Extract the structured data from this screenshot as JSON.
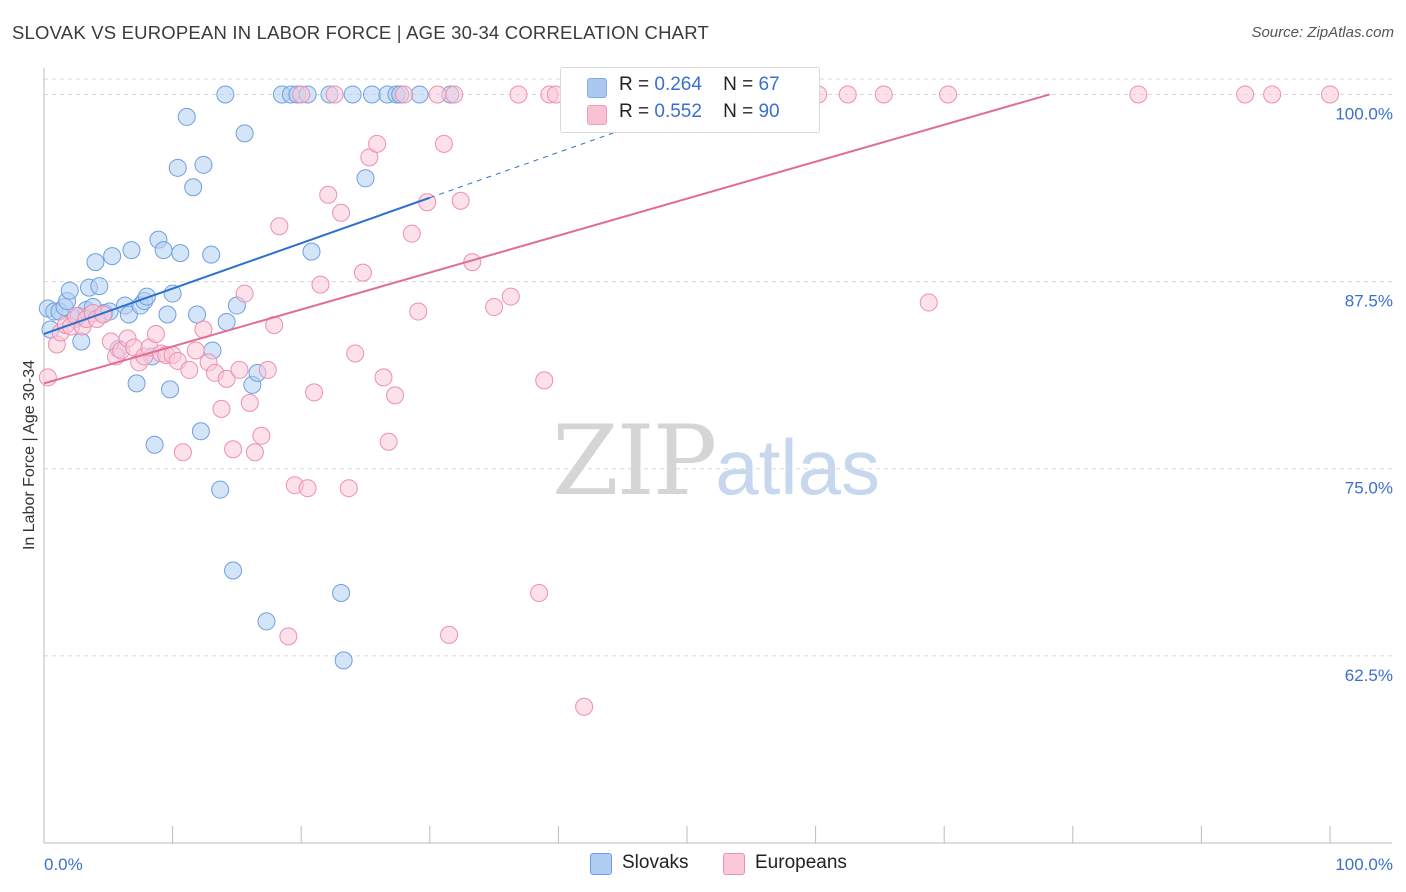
{
  "title": "SLOVAK VS EUROPEAN IN LABOR FORCE | AGE 30-34 CORRELATION CHART",
  "source": "Source: ZipAtlas.com",
  "watermark": {
    "zip": "ZIP",
    "atlas": "atlas"
  },
  "legend": {
    "rows": [
      {
        "r_label": "R =",
        "r_value": "0.264",
        "n_label": "N =",
        "n_value": "67",
        "color": "#9dbfee",
        "border": "#6f9fe0"
      },
      {
        "r_label": "R =",
        "r_value": "0.552",
        "n_label": "N =",
        "n_value": "90",
        "color": "#f7b8cb",
        "border": "#ee8fae"
      }
    ]
  },
  "bottom_legend": [
    {
      "label": "Slovaks",
      "color": "#aecdf3",
      "border": "#6f9fe0"
    },
    {
      "label": "Europeans",
      "color": "#f9c9d8",
      "border": "#ee8fae"
    }
  ],
  "chart_data": {
    "type": "scatter",
    "title": "SLOVAK VS EUROPEAN IN LABOR FORCE | AGE 30-34 CORRELATION CHART",
    "xlabel": "",
    "ylabel": "In Labor Force | Age 30-34",
    "xlim": [
      0,
      100
    ],
    "ylim": [
      50,
      101.5
    ],
    "x_tick_labels": [
      "0.0%",
      "100.0%"
    ],
    "y_ticks": [
      62.5,
      75.0,
      87.5,
      100.0
    ],
    "y_tick_labels": [
      "62.5%",
      "75.0%",
      "87.5%",
      "100.0%"
    ],
    "series": [
      {
        "name": "Slovaks",
        "color": "#6f9fe0",
        "fill": "#b3cff3",
        "points": [
          [
            0.3,
            85.7
          ],
          [
            0.5,
            84.3
          ],
          [
            0.8,
            85.5
          ],
          [
            1.2,
            85.5
          ],
          [
            1.6,
            85.8
          ],
          [
            1.8,
            86.2
          ],
          [
            2.0,
            86.9
          ],
          [
            2.4,
            85.0
          ],
          [
            2.7,
            85.2
          ],
          [
            2.9,
            83.5
          ],
          [
            3.3,
            85.6
          ],
          [
            3.5,
            87.1
          ],
          [
            3.8,
            85.8
          ],
          [
            4.0,
            88.8
          ],
          [
            4.3,
            87.2
          ],
          [
            4.7,
            85.4
          ],
          [
            5.1,
            85.5
          ],
          [
            5.3,
            89.2
          ],
          [
            5.8,
            83.0
          ],
          [
            6.3,
            85.9
          ],
          [
            6.6,
            85.3
          ],
          [
            6.8,
            89.6
          ],
          [
            7.2,
            80.7
          ],
          [
            7.5,
            85.9
          ],
          [
            7.8,
            86.2
          ],
          [
            8.0,
            86.5
          ],
          [
            8.4,
            82.5
          ],
          [
            8.6,
            76.6
          ],
          [
            8.9,
            90.3
          ],
          [
            9.3,
            89.6
          ],
          [
            9.6,
            85.3
          ],
          [
            9.8,
            80.3
          ],
          [
            10.0,
            86.7
          ],
          [
            10.4,
            95.1
          ],
          [
            10.6,
            89.4
          ],
          [
            11.1,
            98.5
          ],
          [
            11.6,
            93.8
          ],
          [
            11.9,
            85.3
          ],
          [
            12.2,
            77.5
          ],
          [
            12.4,
            95.3
          ],
          [
            13.0,
            89.3
          ],
          [
            13.1,
            82.9
          ],
          [
            13.7,
            73.6
          ],
          [
            14.1,
            100.0
          ],
          [
            14.2,
            84.8
          ],
          [
            14.7,
            68.2
          ],
          [
            15.0,
            85.9
          ],
          [
            15.6,
            97.4
          ],
          [
            16.2,
            80.6
          ],
          [
            16.6,
            81.4
          ],
          [
            17.3,
            64.8
          ],
          [
            18.5,
            100.0
          ],
          [
            19.2,
            100.0
          ],
          [
            19.7,
            100.0
          ],
          [
            20.5,
            100.0
          ],
          [
            20.8,
            89.5
          ],
          [
            22.2,
            100.0
          ],
          [
            23.1,
            66.7
          ],
          [
            23.3,
            62.2
          ],
          [
            24.0,
            100.0
          ],
          [
            25.0,
            94.4
          ],
          [
            25.5,
            100.0
          ],
          [
            26.7,
            100.0
          ],
          [
            27.4,
            100.0
          ],
          [
            27.7,
            100.0
          ],
          [
            29.2,
            100.0
          ],
          [
            31.6,
            100.0
          ]
        ]
      },
      {
        "name": "Europeans",
        "color": "#ee8fae",
        "fill": "#f9c9d8",
        "points": [
          [
            0.3,
            81.1
          ],
          [
            1.0,
            83.3
          ],
          [
            1.3,
            84.1
          ],
          [
            1.7,
            84.6
          ],
          [
            2.1,
            84.5
          ],
          [
            2.5,
            85.2
          ],
          [
            3.0,
            84.5
          ],
          [
            3.3,
            85.0
          ],
          [
            3.8,
            85.4
          ],
          [
            4.1,
            85.0
          ],
          [
            4.6,
            85.3
          ],
          [
            5.2,
            83.5
          ],
          [
            5.6,
            82.5
          ],
          [
            6.0,
            82.9
          ],
          [
            6.5,
            83.7
          ],
          [
            7.0,
            83.1
          ],
          [
            7.4,
            82.1
          ],
          [
            7.8,
            82.5
          ],
          [
            8.2,
            83.1
          ],
          [
            8.7,
            84.0
          ],
          [
            9.1,
            82.7
          ],
          [
            9.5,
            82.6
          ],
          [
            10.0,
            82.6
          ],
          [
            10.4,
            82.2
          ],
          [
            10.8,
            76.1
          ],
          [
            11.3,
            81.6
          ],
          [
            11.8,
            82.9
          ],
          [
            12.4,
            84.3
          ],
          [
            12.8,
            82.1
          ],
          [
            13.3,
            81.4
          ],
          [
            13.8,
            79.0
          ],
          [
            14.2,
            81.0
          ],
          [
            14.7,
            76.3
          ],
          [
            15.2,
            81.6
          ],
          [
            15.6,
            86.7
          ],
          [
            16.0,
            79.4
          ],
          [
            16.4,
            76.1
          ],
          [
            16.9,
            77.2
          ],
          [
            17.4,
            81.6
          ],
          [
            17.9,
            84.6
          ],
          [
            18.3,
            91.2
          ],
          [
            19.0,
            63.8
          ],
          [
            19.5,
            73.9
          ],
          [
            20.0,
            100.0
          ],
          [
            20.5,
            73.7
          ],
          [
            21.0,
            80.1
          ],
          [
            21.5,
            87.3
          ],
          [
            22.1,
            93.3
          ],
          [
            22.6,
            100.0
          ],
          [
            23.1,
            92.1
          ],
          [
            23.7,
            73.7
          ],
          [
            24.2,
            82.7
          ],
          [
            24.8,
            88.1
          ],
          [
            25.3,
            95.8
          ],
          [
            25.9,
            96.7
          ],
          [
            26.4,
            81.1
          ],
          [
            26.8,
            76.8
          ],
          [
            27.3,
            79.9
          ],
          [
            28.0,
            100.0
          ],
          [
            28.6,
            90.7
          ],
          [
            29.1,
            85.5
          ],
          [
            29.8,
            92.8
          ],
          [
            30.6,
            100.0
          ],
          [
            31.1,
            96.7
          ],
          [
            31.5,
            63.9
          ],
          [
            31.9,
            100.0
          ],
          [
            32.4,
            92.9
          ],
          [
            33.3,
            88.8
          ],
          [
            35.0,
            85.8
          ],
          [
            36.3,
            86.5
          ],
          [
            36.9,
            100.0
          ],
          [
            38.5,
            66.7
          ],
          [
            38.9,
            80.9
          ],
          [
            39.3,
            100.0
          ],
          [
            39.8,
            100.0
          ],
          [
            42.0,
            59.1
          ],
          [
            43.5,
            100.0
          ],
          [
            47.1,
            100.0
          ],
          [
            49.4,
            100.0
          ],
          [
            54.6,
            100.0
          ],
          [
            57.7,
            100.0
          ],
          [
            60.2,
            100.0
          ],
          [
            62.5,
            100.0
          ],
          [
            65.3,
            100.0
          ],
          [
            68.8,
            86.1
          ],
          [
            70.3,
            100.0
          ],
          [
            85.1,
            100.0
          ],
          [
            93.4,
            100.0
          ],
          [
            95.5,
            100.0
          ],
          [
            100.0,
            100.0
          ]
        ]
      }
    ],
    "trend_lines": [
      {
        "series": "Slovaks",
        "x": [
          0,
          30
        ],
        "y": [
          84.0,
          93.1
        ],
        "dashed_extension_to_x": 45,
        "color": "#2f6fd0"
      },
      {
        "series": "Europeans",
        "x": [
          0,
          78.2
        ],
        "y": [
          80.7,
          100.0
        ],
        "color": "#e06d95"
      }
    ]
  }
}
